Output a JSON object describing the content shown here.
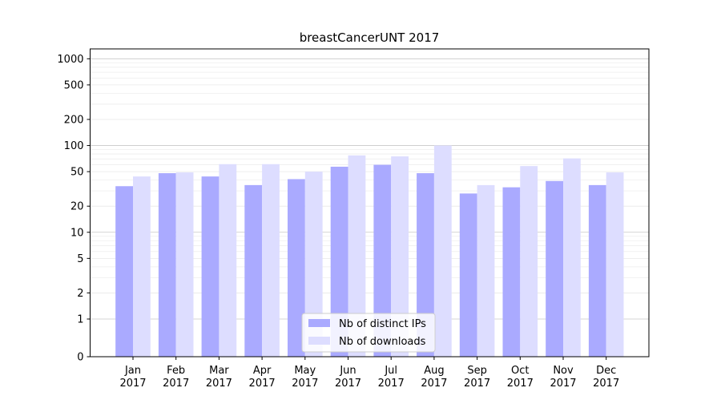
{
  "chart_data": {
    "type": "bar",
    "title": "breastCancerUNT 2017",
    "xlabel": "",
    "ylabel": "",
    "y_scale": "symlog",
    "ylim": [
      0,
      1300
    ],
    "yticks": [
      0,
      1,
      2,
      5,
      10,
      20,
      50,
      100,
      200,
      500,
      1000
    ],
    "grid": "horizontal",
    "legend_position": "bottom-center",
    "categories": [
      [
        "Jan",
        "2017"
      ],
      [
        "Feb",
        "2017"
      ],
      [
        "Mar",
        "2017"
      ],
      [
        "Apr",
        "2017"
      ],
      [
        "May",
        "2017"
      ],
      [
        "Jun",
        "2017"
      ],
      [
        "Jul",
        "2017"
      ],
      [
        "Aug",
        "2017"
      ],
      [
        "Sep",
        "2017"
      ],
      [
        "Oct",
        "2017"
      ],
      [
        "Nov",
        "2017"
      ],
      [
        "Dec",
        "2017"
      ]
    ],
    "series": [
      {
        "name": "Nb of distinct IPs",
        "color": "#aaaaff",
        "values": [
          34,
          48,
          44,
          35,
          41,
          57,
          60,
          48,
          28,
          33,
          39,
          35
        ]
      },
      {
        "name": "Nb of downloads",
        "color": "#ddddff",
        "values": [
          44,
          49,
          61,
          61,
          50,
          77,
          75,
          100,
          35,
          58,
          71,
          49
        ]
      }
    ]
  }
}
